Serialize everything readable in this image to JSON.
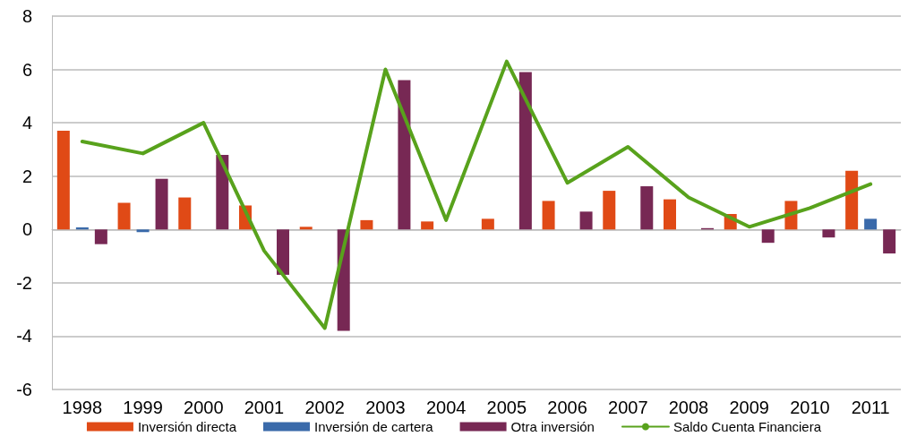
{
  "chart_data": {
    "type": "bar",
    "categories": [
      "1998",
      "1999",
      "2000",
      "2001",
      "2002",
      "2003",
      "2004",
      "2005",
      "2006",
      "2007",
      "2008",
      "2009",
      "2010",
      "2011"
    ],
    "series": [
      {
        "name": "Inversión directa",
        "color": "#e04a16",
        "values": [
          3.7,
          1.0,
          1.2,
          0.9,
          0.1,
          0.35,
          0.3,
          0.4,
          1.07,
          1.45,
          1.13,
          0.58,
          1.07,
          2.2
        ]
      },
      {
        "name": "Inversión de cartera",
        "color": "#3a6aaa",
        "values": [
          0.08,
          -0.1,
          0,
          0,
          0,
          0,
          0,
          0,
          0,
          0,
          0,
          0,
          0,
          0.4
        ]
      },
      {
        "name": "Otra inversión",
        "color": "#772854",
        "values": [
          -0.55,
          1.9,
          2.8,
          -1.7,
          -3.8,
          5.6,
          0,
          5.9,
          0.67,
          1.62,
          0.05,
          -0.5,
          -0.3,
          -0.9
        ]
      },
      {
        "name": "Saldo Cuenta Financiera",
        "type": "line",
        "color": "#58a21c",
        "values": [
          3.3,
          2.85,
          4.0,
          -0.8,
          -3.7,
          6.0,
          0.35,
          6.3,
          1.75,
          3.1,
          1.2,
          0.1,
          0.8,
          1.7
        ]
      }
    ],
    "ylim": [
      -6,
      8
    ],
    "yticks": [
      -6,
      -4,
      -2,
      0,
      2,
      4,
      6,
      8
    ],
    "grid": "y",
    "legend": "bottom",
    "marker": "none",
    "line_style": "solid"
  }
}
